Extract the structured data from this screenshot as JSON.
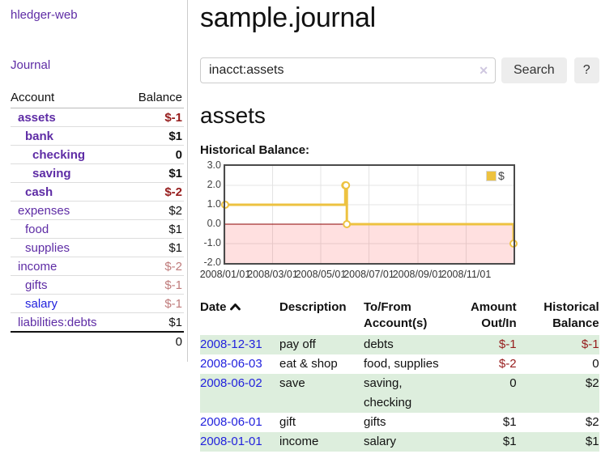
{
  "colors": {
    "accent_purple": "#5e2ca5",
    "link_blue": "#2222dd",
    "neg_strong": "#961c1c",
    "neg_weak": "#bf7b7b",
    "stripe_green": "#ddeedd",
    "chart_gold": "#EDC240"
  },
  "sidebar": {
    "brand": "hledger-web",
    "nav_journal": "Journal",
    "account_header": "Account",
    "balance_header": "Balance",
    "accounts": [
      {
        "name": "assets",
        "depth": 1,
        "bold": true,
        "balance": "$-1",
        "neg": "strong",
        "link": "purple"
      },
      {
        "name": "bank",
        "depth": 2,
        "bold": true,
        "balance": "$1",
        "neg": "none",
        "link": "purple"
      },
      {
        "name": "checking",
        "depth": 3,
        "bold": true,
        "balance": "0",
        "neg": "none",
        "link": "purple"
      },
      {
        "name": "saving",
        "depth": 3,
        "bold": true,
        "balance": "$1",
        "neg": "none",
        "link": "purple"
      },
      {
        "name": "cash",
        "depth": 2,
        "bold": true,
        "balance": "$-2",
        "neg": "strong",
        "link": "purple"
      },
      {
        "name": "expenses",
        "depth": 1,
        "bold": false,
        "balance": "$2",
        "neg": "none",
        "link": "purple"
      },
      {
        "name": "food",
        "depth": 2,
        "bold": false,
        "balance": "$1",
        "neg": "none",
        "link": "purple"
      },
      {
        "name": "supplies",
        "depth": 2,
        "bold": false,
        "balance": "$1",
        "neg": "none",
        "link": "purple"
      },
      {
        "name": "income",
        "depth": 1,
        "bold": false,
        "balance": "$-2",
        "neg": "weak",
        "link": "purple"
      },
      {
        "name": "gifts",
        "depth": 2,
        "bold": false,
        "balance": "$-1",
        "neg": "weak",
        "link": "purple"
      },
      {
        "name": "salary",
        "depth": 2,
        "bold": false,
        "balance": "$-1",
        "neg": "weak",
        "link": "blue"
      },
      {
        "name": "liabilities:debts",
        "depth": 1,
        "bold": false,
        "balance": "$1",
        "neg": "none",
        "link": "purple"
      }
    ],
    "total": "0"
  },
  "main": {
    "title": "sample.journal",
    "search": {
      "value": "inacct:assets",
      "clear_icon": "✕",
      "search_button": "Search",
      "help_button": "?"
    },
    "account_title": "assets",
    "chart_label": "Historical Balance:"
  },
  "chart_data": {
    "type": "line",
    "title": "Historical Balance",
    "series": [
      {
        "name": "$",
        "color": "#EDC240",
        "step": true,
        "points": [
          [
            "2008-01-01",
            1
          ],
          [
            "2008-06-01",
            2
          ],
          [
            "2008-06-02",
            2
          ],
          [
            "2008-06-03",
            0
          ],
          [
            "2008-12-31",
            -1
          ]
        ]
      }
    ],
    "xlim": [
      "2008-01-01",
      "2008-12-31"
    ],
    "ylim": [
      -2,
      3
    ],
    "yticks": [
      3,
      2,
      1,
      0,
      -1,
      -2
    ],
    "ytick_labels": [
      "3.0",
      "2.0",
      "1.0",
      "0.0",
      "-1.0",
      "-2.0"
    ],
    "xticks": [
      {
        "date": "2008-01-01",
        "label": "2008/01/01"
      },
      {
        "date": "2008-03-01",
        "label": "2008/03/01"
      },
      {
        "date": "2008-05-01",
        "label": "2008/05/01"
      },
      {
        "date": "2008-07-01",
        "label": "2008/07/01"
      },
      {
        "date": "2008-09-01",
        "label": "2008/09/01"
      },
      {
        "date": "2008-11-01",
        "label": "2008/11/01"
      }
    ],
    "legend": {
      "position": "top-right",
      "entries": [
        {
          "label": "$",
          "color": "#EDC240"
        }
      ]
    },
    "grid": true,
    "negative_region_color": "rgba(255,0,0,0.12)",
    "zero_line_color": "#8b0000"
  },
  "register": {
    "columns": [
      {
        "line1": "Date",
        "line2": ""
      },
      {
        "line1": "Description",
        "line2": ""
      },
      {
        "line1": "To/From",
        "line2": "Account(s)"
      },
      {
        "line1": "Amount",
        "line2": "Out/In"
      },
      {
        "line1": "Historical",
        "line2": "Balance"
      }
    ],
    "rows": [
      {
        "date": "2008-12-31",
        "description": "pay off",
        "accounts": "debts",
        "amount": "$-1",
        "amount_neg": true,
        "balance": "$-1",
        "balance_neg": true
      },
      {
        "date": "2008-06-03",
        "description": "eat & shop",
        "accounts": "food, supplies",
        "amount": "$-2",
        "amount_neg": true,
        "balance": "0",
        "balance_neg": false
      },
      {
        "date": "2008-06-02",
        "description": "save",
        "accounts": "saving,\nchecking",
        "amount": "0",
        "amount_neg": false,
        "balance": "$2",
        "balance_neg": false
      },
      {
        "date": "2008-06-01",
        "description": "gift",
        "accounts": "gifts",
        "amount": "$1",
        "amount_neg": false,
        "balance": "$2",
        "balance_neg": false
      },
      {
        "date": "2008-01-01",
        "description": "income",
        "accounts": "salary",
        "amount": "$1",
        "amount_neg": false,
        "balance": "$1",
        "balance_neg": false
      }
    ]
  }
}
